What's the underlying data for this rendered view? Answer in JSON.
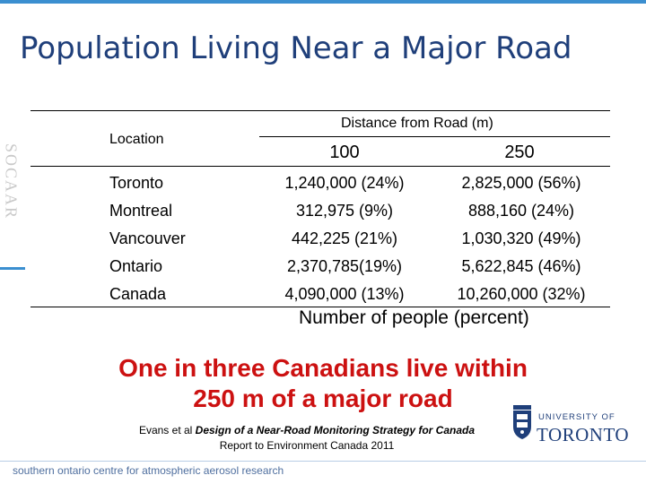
{
  "title": "Population Living Near a Major Road",
  "side_brand": "SOCAAR",
  "table": {
    "location_header": "Location",
    "distance_header": "Distance from Road (m)",
    "columns": [
      "100",
      "250"
    ],
    "rows": [
      {
        "location": "Toronto",
        "d100": "1,240,000 (24%)",
        "d250": "2,825,000 (56%)"
      },
      {
        "location": "Montreal",
        "d100": "312,975 (9%)",
        "d250": "888,160 (24%)"
      },
      {
        "location": "Vancouver",
        "d100": "442,225 (21%)",
        "d250": "1,030,320 (49%)"
      },
      {
        "location": "Ontario",
        "d100": "2,370,785(19%)",
        "d250": "5,622,845 (46%)"
      },
      {
        "location": "Canada",
        "d100": "4,090,000 (13%)",
        "d250": "10,260,000 (32%)"
      }
    ],
    "caption": "Number of people (percent)"
  },
  "headline": {
    "line1": "One in three Canadians live within",
    "line2": "250 m of a major road"
  },
  "citation": {
    "prefix": "Evans et al ",
    "italic": "Design of a Near-Road Monitoring Strategy for Canada",
    "line2": "Report to Environment Canada 2011"
  },
  "logo": {
    "top": "UNIVERSITY OF",
    "bottom": "TORONTO",
    "color": "#1f3f7a"
  },
  "footer": "southern ontario centre for atmospheric aerosol research",
  "colors": {
    "title": "#1f3f7a",
    "headline": "#cc1111",
    "accent": "#3b8fd0"
  }
}
